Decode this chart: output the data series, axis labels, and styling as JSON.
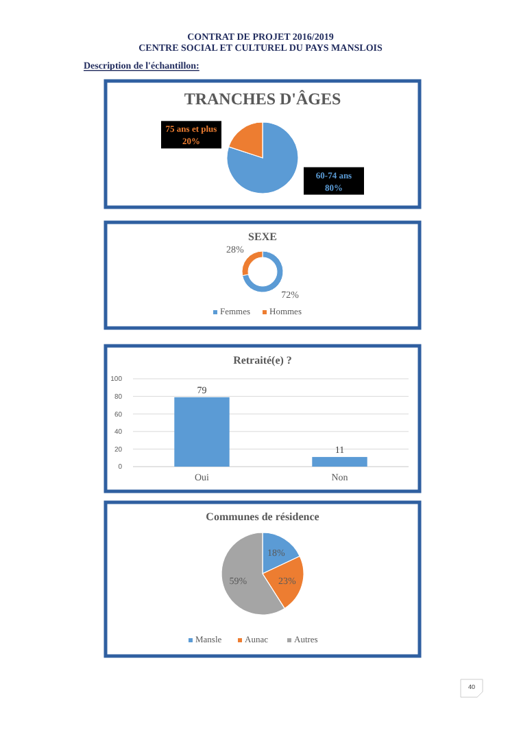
{
  "chart_data": [
    {
      "type": "other",
      "title": "CONTRAT DE PROJET 2016/2019",
      "subtitle": "CENTRE SOCIAL ET CULTUREL DU PAYS MANSLOIS",
      "annotations": [
        "Description de l'échantillon:",
        "40"
      ]
    },
    {
      "type": "pie",
      "title": "TRANCHES D'ÂGES",
      "categories": [
        "60-74 ans",
        "75 ans et plus"
      ],
      "values": [
        80,
        20
      ],
      "colors": [
        "#5b9bd5",
        "#ed7d31"
      ],
      "value_labels": [
        "80%",
        "20%"
      ],
      "legend": false
    },
    {
      "type": "donut",
      "title": "SEXE",
      "categories": [
        "Femmes",
        "Hommes"
      ],
      "values": [
        72,
        28
      ],
      "colors": [
        "#5b9bd5",
        "#ed7d31"
      ],
      "value_labels": [
        "72%",
        "28%"
      ],
      "legend": "bottom"
    },
    {
      "type": "bar",
      "title": "Retraité(e) ?",
      "categories": [
        "Oui",
        "Non"
      ],
      "values": [
        79,
        11
      ],
      "color": "#5b9bd5",
      "ylim": [
        0,
        100
      ],
      "yticks": [
        0,
        20,
        40,
        60,
        80,
        100
      ],
      "grid": "y",
      "data_labels": true
    },
    {
      "type": "pie",
      "title": "Communes de résidence",
      "categories": [
        "Mansle",
        "Aunac",
        "Autres"
      ],
      "values": [
        18,
        23,
        59
      ],
      "colors": [
        "#5b9bd5",
        "#ed7d31",
        "#a5a5a5"
      ],
      "value_labels": [
        "18%",
        "23%",
        "59%"
      ],
      "legend": "bottom"
    }
  ]
}
